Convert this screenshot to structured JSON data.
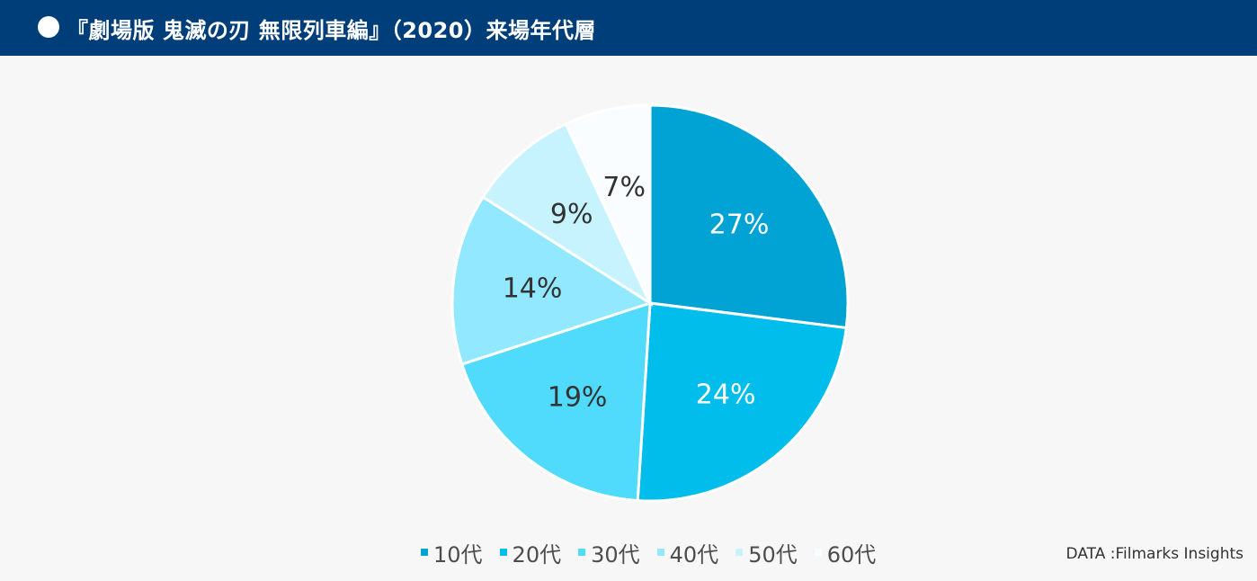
{
  "header": {
    "title": "『劇場版 鬼滅の刃 無限列車編』（2020）来場年代層",
    "background": "#003e7a"
  },
  "chart_data": {
    "type": "pie",
    "title": "『劇場版 鬼滅の刃 無限列車編』（2020）来場年代層",
    "categories": [
      "10代",
      "20代",
      "30代",
      "40代",
      "50代",
      "60代"
    ],
    "values": [
      27,
      24,
      19,
      14,
      9,
      7
    ],
    "labels": [
      "27%",
      "24%",
      "19%",
      "14%",
      "9%",
      "7%"
    ],
    "colors": [
      "#00a3d3",
      "#00bdec",
      "#50dbfc",
      "#92e8fe",
      "#c7f3fe",
      "#fafdff"
    ],
    "label_colors": [
      "#ffffff",
      "#ffffff",
      "#333333",
      "#333333",
      "#333333",
      "#333333"
    ],
    "legend_position": "bottom"
  },
  "source": "DATA :Filmarks Insights"
}
